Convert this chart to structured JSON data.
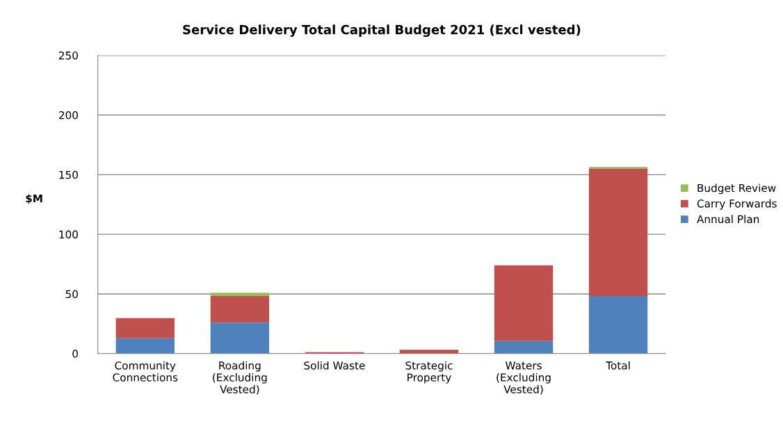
{
  "chart_data": {
    "type": "bar",
    "title": "Service Delivery Total Capital Budget 2021 (Excl vested)",
    "ylabel": "$M",
    "categories": [
      "Community\nConnections",
      "Roading\n(Excluding\nVested)",
      "Solid Waste",
      "Strategic\nProperty",
      "Waters\n(Excluding\nVested)",
      "Total"
    ],
    "series": [
      {
        "name": "Annual Plan",
        "color": "#4f81bd",
        "values": [
          12.8,
          26,
          null,
          null,
          10.5,
          48.3
        ]
      },
      {
        "name": "Carry Forwards",
        "color": "#c0504d",
        "values": [
          17,
          22.3,
          1.2,
          3.2,
          63.5,
          106.5
        ]
      },
      {
        "name": "Budget Review",
        "color": "#9bbb59",
        "values": [
          null,
          2.7,
          null,
          null,
          null,
          1.6
        ]
      }
    ],
    "stacked": true,
    "ylim": [
      0,
      250
    ],
    "yticks": [
      0,
      50,
      100,
      150,
      200,
      250
    ],
    "grid": "y",
    "legend": "right"
  }
}
